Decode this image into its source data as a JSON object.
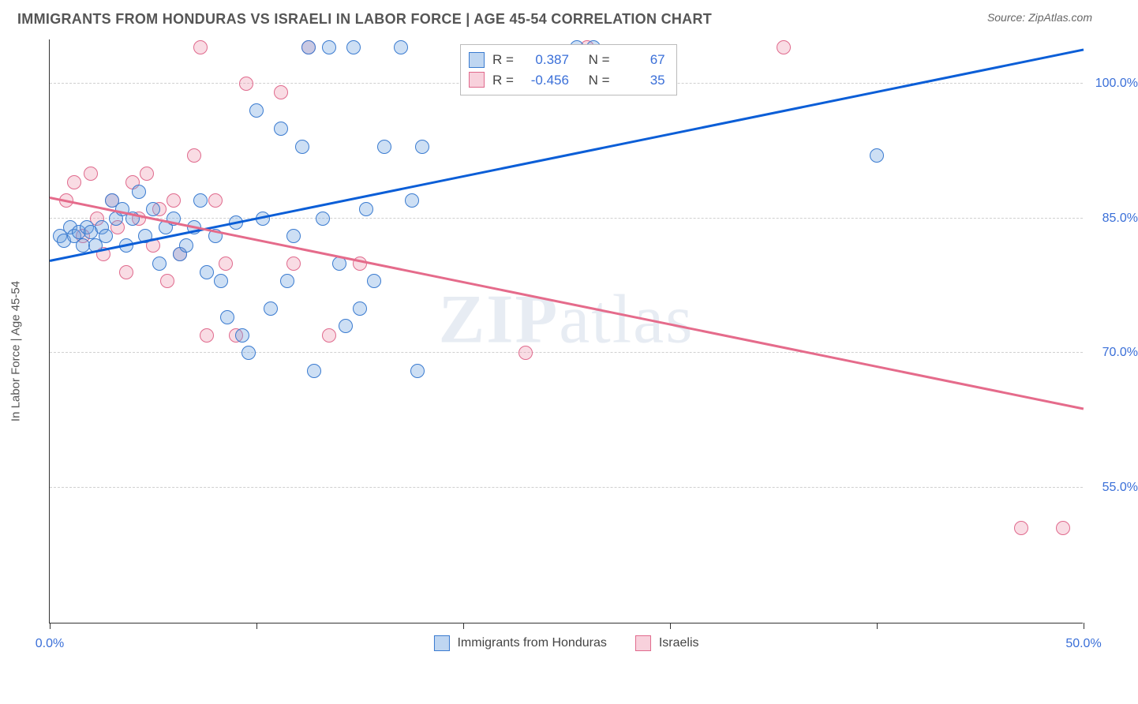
{
  "header": {
    "title": "IMMIGRANTS FROM HONDURAS VS ISRAELI IN LABOR FORCE | AGE 45-54 CORRELATION CHART",
    "source_prefix": "Source: ",
    "source_name": "ZipAtlas.com"
  },
  "watermark": {
    "bold": "ZIP",
    "rest": "atlas"
  },
  "chart": {
    "type": "scatter",
    "ylabel": "In Labor Force | Age 45-54",
    "xlim": [
      0,
      50
    ],
    "ylim": [
      40,
      105
    ],
    "x_ticks": [
      0,
      10,
      20,
      30,
      40,
      50
    ],
    "x_tick_labels": {
      "0": "0.0%",
      "50": "50.0%"
    },
    "y_gridlines": [
      55,
      70,
      85,
      100
    ],
    "y_tick_labels": {
      "55": "55.0%",
      "70": "70.0%",
      "85": "85.0%",
      "100": "100.0%"
    },
    "background_color": "#ffffff",
    "grid_color": "#d0d0d0",
    "axis_color": "#333333",
    "marker_radius": 9,
    "series": {
      "blue": {
        "label": "Immigrants from Honduras",
        "fill": "rgba(113,163,224,0.35)",
        "stroke": "#3a7bd0",
        "line_color": "#0b5ed7",
        "R": "0.387",
        "N": "67",
        "regression": {
          "x1": 0,
          "y1": 80.5,
          "x2": 50,
          "y2": 104
        },
        "points": [
          [
            0.5,
            83
          ],
          [
            0.7,
            82.5
          ],
          [
            1,
            84
          ],
          [
            1.2,
            83
          ],
          [
            1.4,
            83.5
          ],
          [
            1.6,
            82
          ],
          [
            1.8,
            84
          ],
          [
            2,
            83.5
          ],
          [
            2.2,
            82
          ],
          [
            2.5,
            84
          ],
          [
            2.7,
            83
          ],
          [
            3,
            87
          ],
          [
            3.2,
            85
          ],
          [
            3.5,
            86
          ],
          [
            3.7,
            82
          ],
          [
            4,
            85
          ],
          [
            4.3,
            88
          ],
          [
            4.6,
            83
          ],
          [
            5,
            86
          ],
          [
            5.3,
            80
          ],
          [
            5.6,
            84
          ],
          [
            6,
            85
          ],
          [
            6.3,
            81
          ],
          [
            6.6,
            82
          ],
          [
            7,
            84
          ],
          [
            7.3,
            87
          ],
          [
            7.6,
            79
          ],
          [
            8,
            83
          ],
          [
            8.3,
            78
          ],
          [
            8.6,
            74
          ],
          [
            9,
            84.5
          ],
          [
            9.3,
            72
          ],
          [
            9.6,
            70
          ],
          [
            10,
            97
          ],
          [
            10.3,
            85
          ],
          [
            10.7,
            75
          ],
          [
            11.2,
            95
          ],
          [
            11.5,
            78
          ],
          [
            11.8,
            83
          ],
          [
            12.2,
            93
          ],
          [
            12.5,
            104
          ],
          [
            12.8,
            68
          ],
          [
            13.2,
            85
          ],
          [
            13.5,
            104
          ],
          [
            14,
            80
          ],
          [
            14.3,
            73
          ],
          [
            14.7,
            104
          ],
          [
            15,
            75
          ],
          [
            15.3,
            86
          ],
          [
            15.7,
            78
          ],
          [
            16.2,
            93
          ],
          [
            17,
            104
          ],
          [
            17.5,
            87
          ],
          [
            18,
            93
          ],
          [
            17.8,
            68
          ],
          [
            25.5,
            104
          ],
          [
            26.3,
            104
          ],
          [
            40,
            92
          ]
        ]
      },
      "pink": {
        "label": "Israelis",
        "fill": "rgba(239,154,178,0.35)",
        "stroke": "#e06a8d",
        "line_color": "#e56b8b",
        "R": "-0.456",
        "N": "35",
        "regression": {
          "x1": 0,
          "y1": 87.5,
          "x2": 50,
          "y2": 64
        },
        "points": [
          [
            0.8,
            87
          ],
          [
            1.2,
            89
          ],
          [
            1.6,
            83
          ],
          [
            2,
            90
          ],
          [
            2.3,
            85
          ],
          [
            2.6,
            81
          ],
          [
            3,
            87
          ],
          [
            3.3,
            84
          ],
          [
            3.7,
            79
          ],
          [
            4,
            89
          ],
          [
            4.3,
            85
          ],
          [
            4.7,
            90
          ],
          [
            5,
            82
          ],
          [
            5.3,
            86
          ],
          [
            5.7,
            78
          ],
          [
            6,
            87
          ],
          [
            6.3,
            81
          ],
          [
            7,
            92
          ],
          [
            7.3,
            104
          ],
          [
            7.6,
            72
          ],
          [
            8,
            87
          ],
          [
            8.5,
            80
          ],
          [
            9,
            72
          ],
          [
            9.5,
            100
          ],
          [
            11.2,
            99
          ],
          [
            11.8,
            80
          ],
          [
            12.5,
            104
          ],
          [
            13.5,
            72
          ],
          [
            15,
            80
          ],
          [
            23,
            70
          ],
          [
            26,
            104
          ],
          [
            35.5,
            104
          ],
          [
            47,
            50.5
          ],
          [
            49,
            50.5
          ]
        ]
      }
    },
    "legend_top": {
      "R_label": "R =",
      "N_label": "N ="
    },
    "legend_bottom_order": [
      "blue",
      "pink"
    ]
  }
}
